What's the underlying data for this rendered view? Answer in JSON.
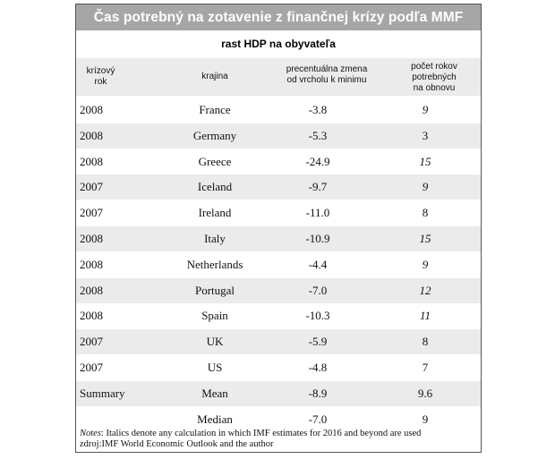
{
  "chart_data": {
    "type": "table",
    "title": "Čas potrebný na zotavenie z finančnej krízy podľa MMF",
    "subtitle": "rast HDP na obyvateľa",
    "columns": [
      "krízový\nrok",
      "krajina",
      "precentuálna zmena\nod vrcholu k minimu",
      "počet rokov\npotrebných\nna obnovu"
    ],
    "rows": [
      {
        "year": "2008",
        "country": "France",
        "change": "-3.8",
        "years": "9",
        "italic": true
      },
      {
        "year": "2008",
        "country": "Germany",
        "change": "-5.3",
        "years": "3",
        "italic": false
      },
      {
        "year": "2008",
        "country": "Greece",
        "change": "-24.9",
        "years": "15",
        "italic": true
      },
      {
        "year": "2007",
        "country": "Iceland",
        "change": "-9.7",
        "years": "9",
        "italic": true
      },
      {
        "year": "2007",
        "country": "Ireland",
        "change": "-11.0",
        "years": "8",
        "italic": false
      },
      {
        "year": "2008",
        "country": "Italy",
        "change": "-10.9",
        "years": "15",
        "italic": true
      },
      {
        "year": "2008",
        "country": "Netherlands",
        "change": "-4.4",
        "years": "9",
        "italic": true
      },
      {
        "year": "2008",
        "country": "Portugal",
        "change": "-7.0",
        "years": "12",
        "italic": true
      },
      {
        "year": "2008",
        "country": "Spain",
        "change": "-10.3",
        "years": "11",
        "italic": true
      },
      {
        "year": "2007",
        "country": "UK",
        "change": "-5.9",
        "years": "8",
        "italic": false
      },
      {
        "year": "2007",
        "country": "US",
        "change": "-4.8",
        "years": "7",
        "italic": false
      },
      {
        "year": "Summary",
        "country": "Mean",
        "change": "-8.9",
        "years": "9.6",
        "italic": false
      },
      {
        "year": "",
        "country": "Median",
        "change": "-7.0",
        "years": "9",
        "italic": false
      }
    ],
    "notes_label": "Notes",
    "notes_text": ": Italics denote any calculation in which IMF estimates for 2016 and beyond are used",
    "source": "zdroj:IMF World Economic Outlook and the author"
  }
}
